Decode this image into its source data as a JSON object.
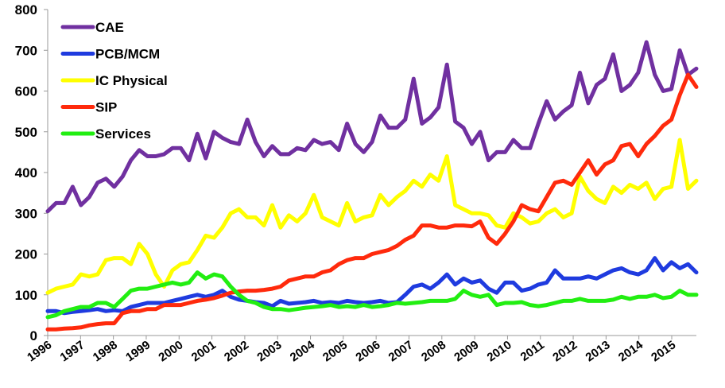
{
  "chart_data": {
    "type": "line",
    "title": "",
    "xlabel": "",
    "ylabel": "",
    "ylim": [
      0,
      800
    ],
    "yticks": [
      0,
      100,
      200,
      300,
      400,
      500,
      600,
      700,
      800
    ],
    "x_tick_labels": [
      "1996",
      "1997",
      "1998",
      "1999",
      "2000",
      "2001",
      "2002",
      "2003",
      "2004",
      "2005",
      "2006",
      "2007",
      "2008",
      "2009",
      "2010",
      "2011",
      "2012",
      "2013",
      "2014",
      "2015"
    ],
    "x_start": 1996.0,
    "x_end": 2015.75,
    "grid": false,
    "legend_placement": "top-left",
    "series": [
      {
        "name": "CAE",
        "color": "#7030A0",
        "values": [
          305,
          325,
          325,
          365,
          320,
          340,
          375,
          385,
          365,
          390,
          430,
          455,
          440,
          440,
          445,
          460,
          460,
          430,
          495,
          435,
          500,
          485,
          475,
          470,
          530,
          475,
          440,
          465,
          445,
          445,
          460,
          455,
          480,
          470,
          475,
          455,
          520,
          470,
          450,
          475,
          540,
          510,
          510,
          530,
          630,
          520,
          535,
          560,
          665,
          525,
          510,
          470,
          500,
          430,
          450,
          450,
          480,
          460,
          460,
          520,
          575,
          530,
          550,
          565,
          645,
          570,
          615,
          630,
          690,
          600,
          615,
          645,
          720,
          640,
          600,
          605,
          700,
          640,
          655
        ]
      },
      {
        "name": "PCB/MCM",
        "color": "#1F3BDF",
        "values": [
          60,
          60,
          55,
          58,
          60,
          62,
          65,
          60,
          62,
          60,
          70,
          75,
          80,
          80,
          80,
          85,
          90,
          95,
          100,
          95,
          100,
          110,
          95,
          88,
          85,
          82,
          80,
          72,
          85,
          78,
          80,
          82,
          85,
          80,
          82,
          80,
          85,
          82,
          80,
          82,
          85,
          80,
          82,
          100,
          120,
          125,
          115,
          130,
          150,
          125,
          140,
          130,
          135,
          115,
          105,
          130,
          130,
          110,
          115,
          125,
          130,
          160,
          140,
          140,
          140,
          145,
          140,
          150,
          160,
          165,
          155,
          150,
          160,
          190,
          160,
          180,
          165,
          175,
          155
        ]
      },
      {
        "name": "IC Physical",
        "color": "#FFFF00",
        "values": [
          105,
          115,
          120,
          125,
          150,
          145,
          150,
          185,
          190,
          190,
          175,
          225,
          200,
          150,
          120,
          160,
          175,
          180,
          210,
          245,
          240,
          265,
          300,
          310,
          290,
          290,
          270,
          320,
          265,
          295,
          280,
          300,
          345,
          290,
          280,
          270,
          325,
          280,
          290,
          295,
          345,
          320,
          340,
          355,
          380,
          365,
          395,
          380,
          440,
          320,
          310,
          300,
          300,
          295,
          270,
          265,
          300,
          290,
          275,
          280,
          300,
          310,
          290,
          300,
          390,
          355,
          335,
          325,
          365,
          350,
          370,
          360,
          375,
          335,
          360,
          365,
          480,
          360,
          380
        ]
      },
      {
        "name": "SIP",
        "color": "#FF2A0C",
        "values": [
          15,
          15,
          17,
          18,
          20,
          25,
          28,
          30,
          30,
          55,
          60,
          60,
          65,
          65,
          75,
          75,
          75,
          80,
          85,
          88,
          92,
          98,
          105,
          108,
          110,
          110,
          112,
          115,
          120,
          135,
          140,
          145,
          145,
          155,
          160,
          175,
          185,
          190,
          190,
          200,
          205,
          210,
          220,
          235,
          245,
          270,
          270,
          265,
          265,
          270,
          270,
          268,
          280,
          240,
          225,
          250,
          280,
          320,
          310,
          305,
          340,
          375,
          380,
          370,
          400,
          430,
          395,
          420,
          430,
          465,
          470,
          440,
          470,
          490,
          515,
          530,
          590,
          640,
          610
        ]
      },
      {
        "name": "Services",
        "color": "#22EE11",
        "values": [
          45,
          50,
          60,
          65,
          70,
          70,
          80,
          80,
          70,
          90,
          110,
          115,
          115,
          120,
          125,
          130,
          125,
          130,
          155,
          140,
          150,
          145,
          120,
          100,
          85,
          80,
          70,
          65,
          65,
          62,
          65,
          68,
          70,
          72,
          75,
          70,
          72,
          70,
          75,
          70,
          72,
          75,
          80,
          78,
          80,
          82,
          85,
          85,
          85,
          90,
          110,
          100,
          95,
          100,
          75,
          80,
          80,
          82,
          75,
          72,
          75,
          80,
          85,
          85,
          90,
          85,
          85,
          85,
          88,
          95,
          90,
          95,
          95,
          100,
          92,
          95,
          110,
          100,
          100
        ]
      }
    ]
  }
}
